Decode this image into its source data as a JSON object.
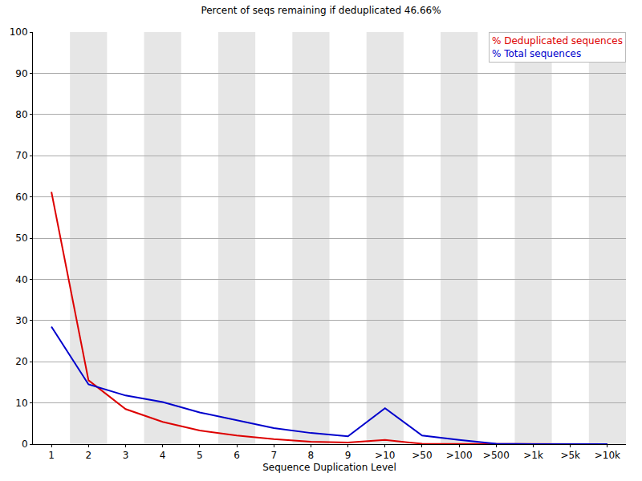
{
  "chart_data": {
    "type": "line",
    "title": "Percent of seqs remaining if deduplicated 46.66%",
    "x_label": "Sequence Duplication Level",
    "categories": [
      "1",
      "2",
      "3",
      "4",
      "5",
      "6",
      "7",
      "8",
      "9",
      ">10",
      ">50",
      ">100",
      ">500",
      ">1k",
      ">5k",
      ">10k"
    ],
    "series": [
      {
        "name": "% Deduplicated sequences",
        "color": "#dd0000",
        "values": [
          61.2,
          15.5,
          8.5,
          5.4,
          3.3,
          2.1,
          1.2,
          0.6,
          0.4,
          1.0,
          0.1,
          0.05,
          0,
          0,
          0,
          0
        ]
      },
      {
        "name": "% Total sequences",
        "color": "#0000cc",
        "values": [
          28.5,
          14.5,
          11.8,
          10.2,
          7.7,
          5.8,
          3.9,
          2.7,
          1.9,
          8.7,
          2.1,
          1.0,
          0.1,
          0,
          0,
          0
        ]
      }
    ],
    "ylim": [
      0,
      100
    ],
    "yticks": [
      0,
      10,
      20,
      30,
      40,
      50,
      60,
      70,
      80,
      90,
      100
    ],
    "grid": true,
    "legend": "upper right"
  }
}
